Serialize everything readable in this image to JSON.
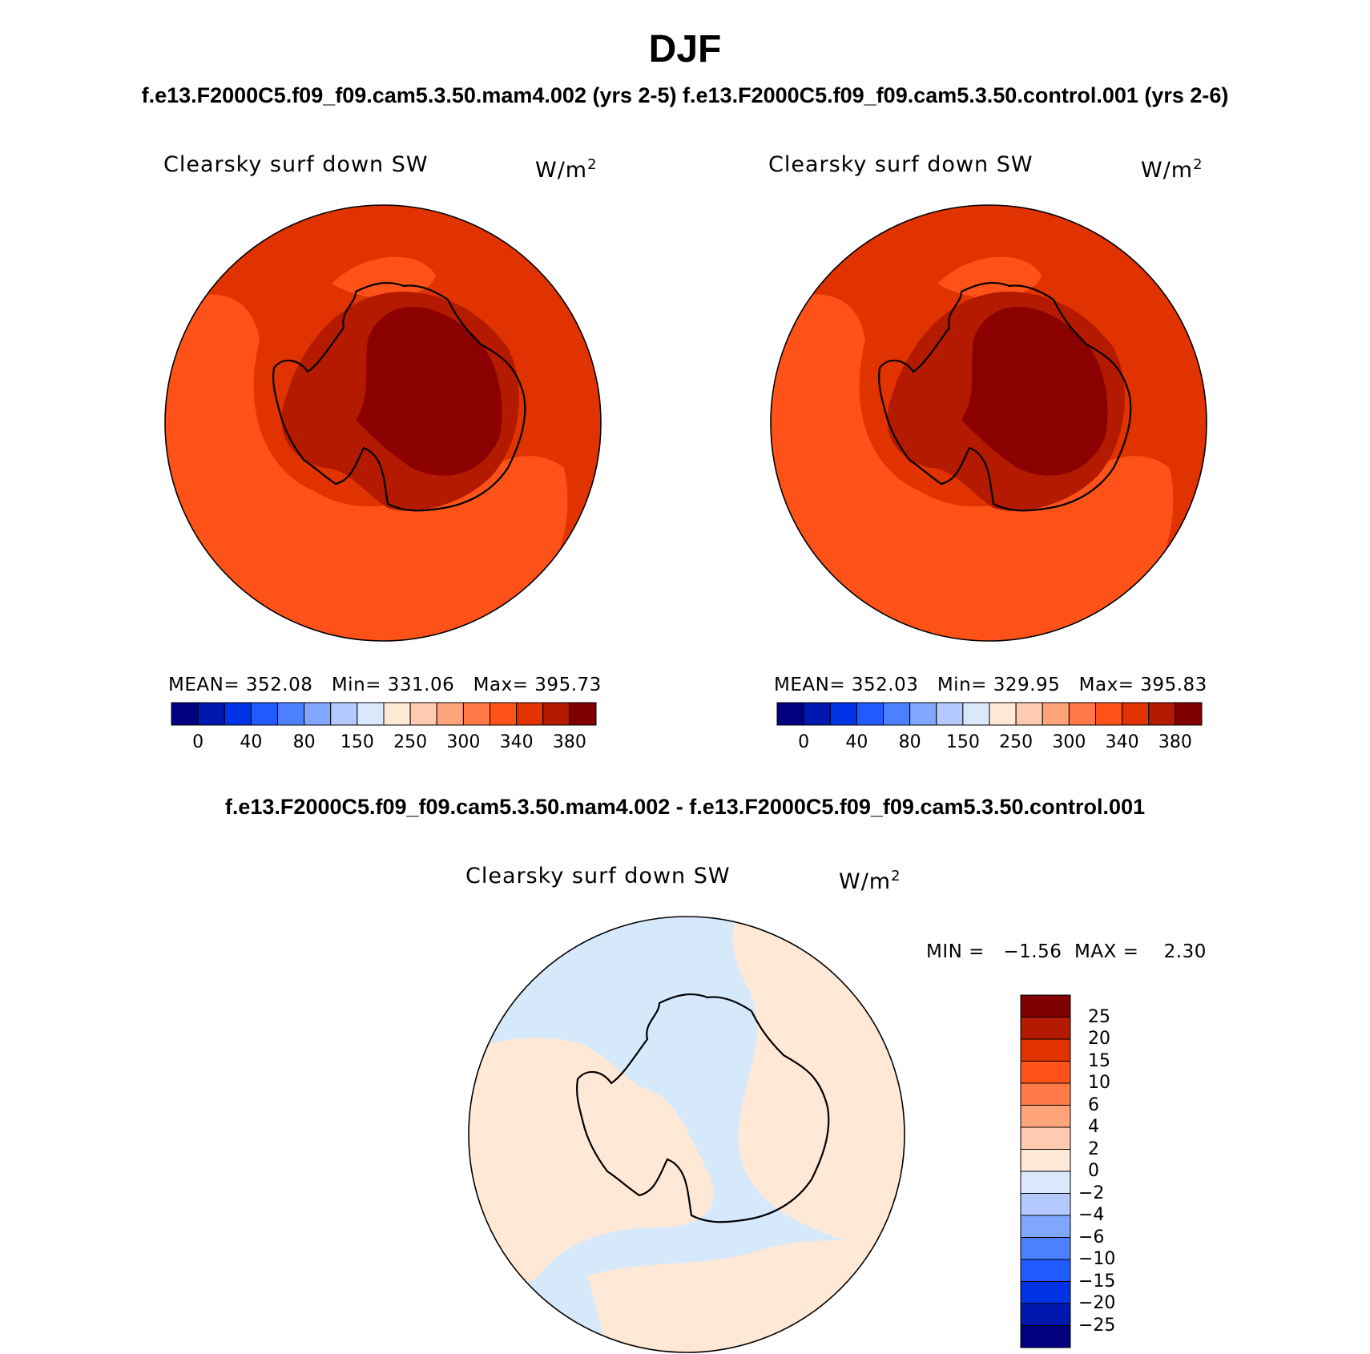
{
  "title": "DJF",
  "top_titles": {
    "left": "f.e13.F2000C5.f09_f09.cam5.3.50.mam4.002 (yrs 2-5)",
    "right": "f.e13.F2000C5.f09_f09.cam5.3.50.control.001 (yrs 2-6)"
  },
  "diff_title": "f.e13.F2000C5.f09_f09.cam5.3.50.mam4.002 - f.e13.F2000C5.f09_f09.cam5.3.50.control.001",
  "variable_label": "Clearsky surf down SW",
  "units": "W/m",
  "units_exponent": "2",
  "panels": [
    {
      "stats": {
        "mean_label": "MEAN=",
        "mean": "352.08",
        "min_label": "Min=",
        "min": "331.06",
        "max_label": "Max=",
        "max": "395.73"
      }
    },
    {
      "stats": {
        "mean_label": "MEAN=",
        "mean": "352.03",
        "min_label": "Min=",
        "min": "329.95",
        "max_label": "Max=",
        "max": "395.83"
      }
    }
  ],
  "diff_stats": {
    "min_label": "MIN =",
    "min": "−1.56",
    "max_label": "MAX =",
    "max": "2.30"
  },
  "colorbar_abs": {
    "colors": [
      "#000080",
      "#0018b0",
      "#0033e6",
      "#1f5bff",
      "#4d80ff",
      "#80a6ff",
      "#b3c9ff",
      "#d9e9fb",
      "#ffe8d6",
      "#ffcab0",
      "#ffa47a",
      "#ff7a47",
      "#ff5219",
      "#e03300",
      "#b31a00",
      "#800000"
    ],
    "tick_labels": [
      "0",
      "40",
      "80",
      "150",
      "250",
      "300",
      "340",
      "380"
    ]
  },
  "colorbar_diff": {
    "colors": [
      "#000080",
      "#0018b0",
      "#0033e6",
      "#1f5bff",
      "#4d80ff",
      "#80a6ff",
      "#b3c9ff",
      "#d9e9fb",
      "#ffe8d6",
      "#ffcab0",
      "#ffa47a",
      "#ff7a47",
      "#ff5219",
      "#e03300",
      "#b31a00",
      "#800000"
    ],
    "tick_labels": [
      "25",
      "20",
      "15",
      "10",
      "6",
      "4",
      "2",
      "0",
      "−2",
      "−4",
      "−6",
      "−10",
      "−15",
      "−20",
      "−25"
    ]
  },
  "map_colors": {
    "ocean_main": "#e03300",
    "ocean_light": "#ff5219",
    "coast_ring": "#b31a00",
    "plateau": "#8b0000",
    "diff_blue": "#d6e9fb",
    "diff_peach": "#ffe8d6",
    "coastline": "#000000"
  }
}
